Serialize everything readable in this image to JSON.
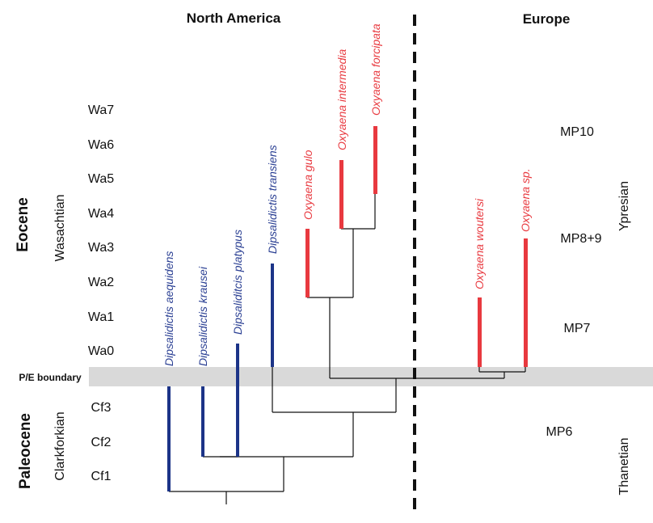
{
  "regions": {
    "north_america": "North America",
    "europe": "Europe"
  },
  "boundary_label": "P/E boundary",
  "epochs": {
    "eocene": "Eocene",
    "paleocene": "Paleocene"
  },
  "na_stages": {
    "wasachtian": "Wasachtian",
    "clarkforkian": "Clarkforkian"
  },
  "eu_stages": {
    "ypresian": "Ypresian",
    "thanetian": "Thanetian"
  },
  "zones": [
    "Wa7",
    "Wa6",
    "Wa5",
    "Wa4",
    "Wa3",
    "Wa2",
    "Wa1",
    "Wa0",
    "Cf3",
    "Cf2",
    "Cf1"
  ],
  "mp_zones": [
    "MP10",
    "MP8+9",
    "MP7",
    "MP6"
  ],
  "taxa": [
    {
      "name": "Dipsalidictis aequidens",
      "group": "Dipsalidictis"
    },
    {
      "name": "Dipsalidictis krausei",
      "group": "Dipsalidictis"
    },
    {
      "name": "Dipsaliditcis platypus",
      "group": "Dipsalidictis"
    },
    {
      "name": "Dipsalidictis transiens",
      "group": "Dipsalidictis"
    },
    {
      "name": "Oxyaena gulo",
      "group": "Oxyaena"
    },
    {
      "name": "Oxyaena intermedia",
      "group": "Oxyaena"
    },
    {
      "name": "Oxyaena forcipata",
      "group": "Oxyaena"
    },
    {
      "name": "Oxyaena woutersi",
      "group": "Oxyaena"
    },
    {
      "name": "Oxyaena sp.",
      "group": "Oxyaena"
    }
  ],
  "colors": {
    "dipsalidictis": "#1c3488",
    "oxyaena": "#e8393f",
    "boundary_band": "#d9d9d9",
    "tree": "#111111"
  }
}
